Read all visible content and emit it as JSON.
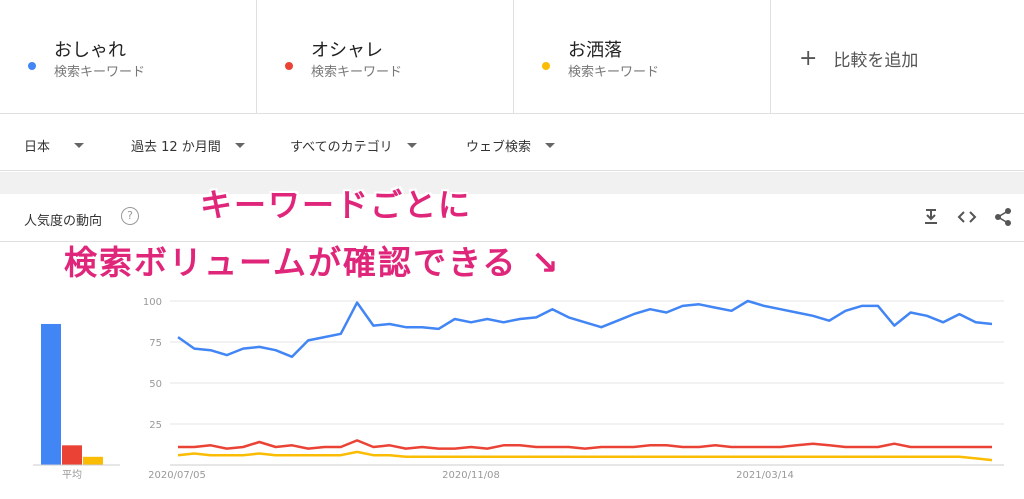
{
  "terms": [
    {
      "name": "おしゃれ",
      "sub": "検索キーワード",
      "color": "#4285f4"
    },
    {
      "name": "オシャレ",
      "sub": "検索キーワード",
      "color": "#ea4335"
    },
    {
      "name": "お洒落",
      "sub": "検索キーワード",
      "color": "#fbbc04"
    }
  ],
  "add_compare": {
    "icon": "plus-icon",
    "label": "比較を追加"
  },
  "filters": [
    {
      "label": "日本",
      "icon": "dropdown-arrow-icon"
    },
    {
      "label": "過去 12 か月間",
      "icon": "dropdown-arrow-icon"
    },
    {
      "label": "すべてのカテゴリ",
      "icon": "dropdown-arrow-icon"
    },
    {
      "label": "ウェブ検索",
      "icon": "dropdown-arrow-icon"
    }
  ],
  "card": {
    "title": "人気度の動向",
    "help_icon": "question-icon",
    "help_glyph": "?",
    "actions": [
      "download-icon",
      "embed-icon",
      "share-icon"
    ]
  },
  "overlay": {
    "line1": "キーワードごとに",
    "line2": "検索ボリュームが確認できる ↘"
  },
  "chart_data": {
    "type": "line",
    "x_tick_labels": [
      "2020/07/05",
      "2020/11/08",
      "2021/03/14"
    ],
    "y_ticks": [
      25,
      50,
      75,
      100
    ],
    "ylim": [
      0,
      100
    ],
    "grid": true,
    "average_label": "平均",
    "averages": [
      {
        "series": "おしゃれ",
        "value": 86
      },
      {
        "series": "オシャレ",
        "value": 12
      },
      {
        "series": "お洒落",
        "value": 5
      }
    ],
    "series": [
      {
        "name": "おしゃれ",
        "color": "#4285f4",
        "values": [
          78,
          71,
          70,
          67,
          71,
          72,
          70,
          66,
          76,
          78,
          80,
          99,
          85,
          86,
          84,
          84,
          83,
          89,
          87,
          89,
          87,
          89,
          90,
          95,
          90,
          87,
          84,
          88,
          92,
          95,
          93,
          97,
          98,
          96,
          94,
          100,
          97,
          95,
          93,
          91,
          88,
          94,
          97,
          97,
          85,
          93,
          91,
          87,
          92,
          87,
          86
        ]
      },
      {
        "name": "オシャレ",
        "color": "#ea4335",
        "values": [
          11,
          11,
          12,
          10,
          11,
          14,
          11,
          12,
          10,
          11,
          11,
          15,
          11,
          12,
          10,
          11,
          10,
          10,
          11,
          10,
          12,
          12,
          11,
          11,
          11,
          10,
          11,
          11,
          11,
          12,
          12,
          11,
          11,
          12,
          11,
          11,
          11,
          11,
          12,
          13,
          12,
          11,
          11,
          11,
          13,
          11,
          11,
          11,
          11,
          11,
          11
        ]
      },
      {
        "name": "お洒落",
        "color": "#fbbc04",
        "values": [
          6,
          7,
          6,
          6,
          6,
          7,
          6,
          6,
          6,
          6,
          6,
          8,
          6,
          6,
          5,
          5,
          5,
          5,
          5,
          5,
          5,
          5,
          5,
          5,
          5,
          5,
          5,
          5,
          5,
          5,
          5,
          5,
          5,
          5,
          5,
          5,
          5,
          5,
          5,
          5,
          5,
          5,
          5,
          5,
          5,
          5,
          5,
          5,
          5,
          4,
          3
        ]
      }
    ]
  }
}
